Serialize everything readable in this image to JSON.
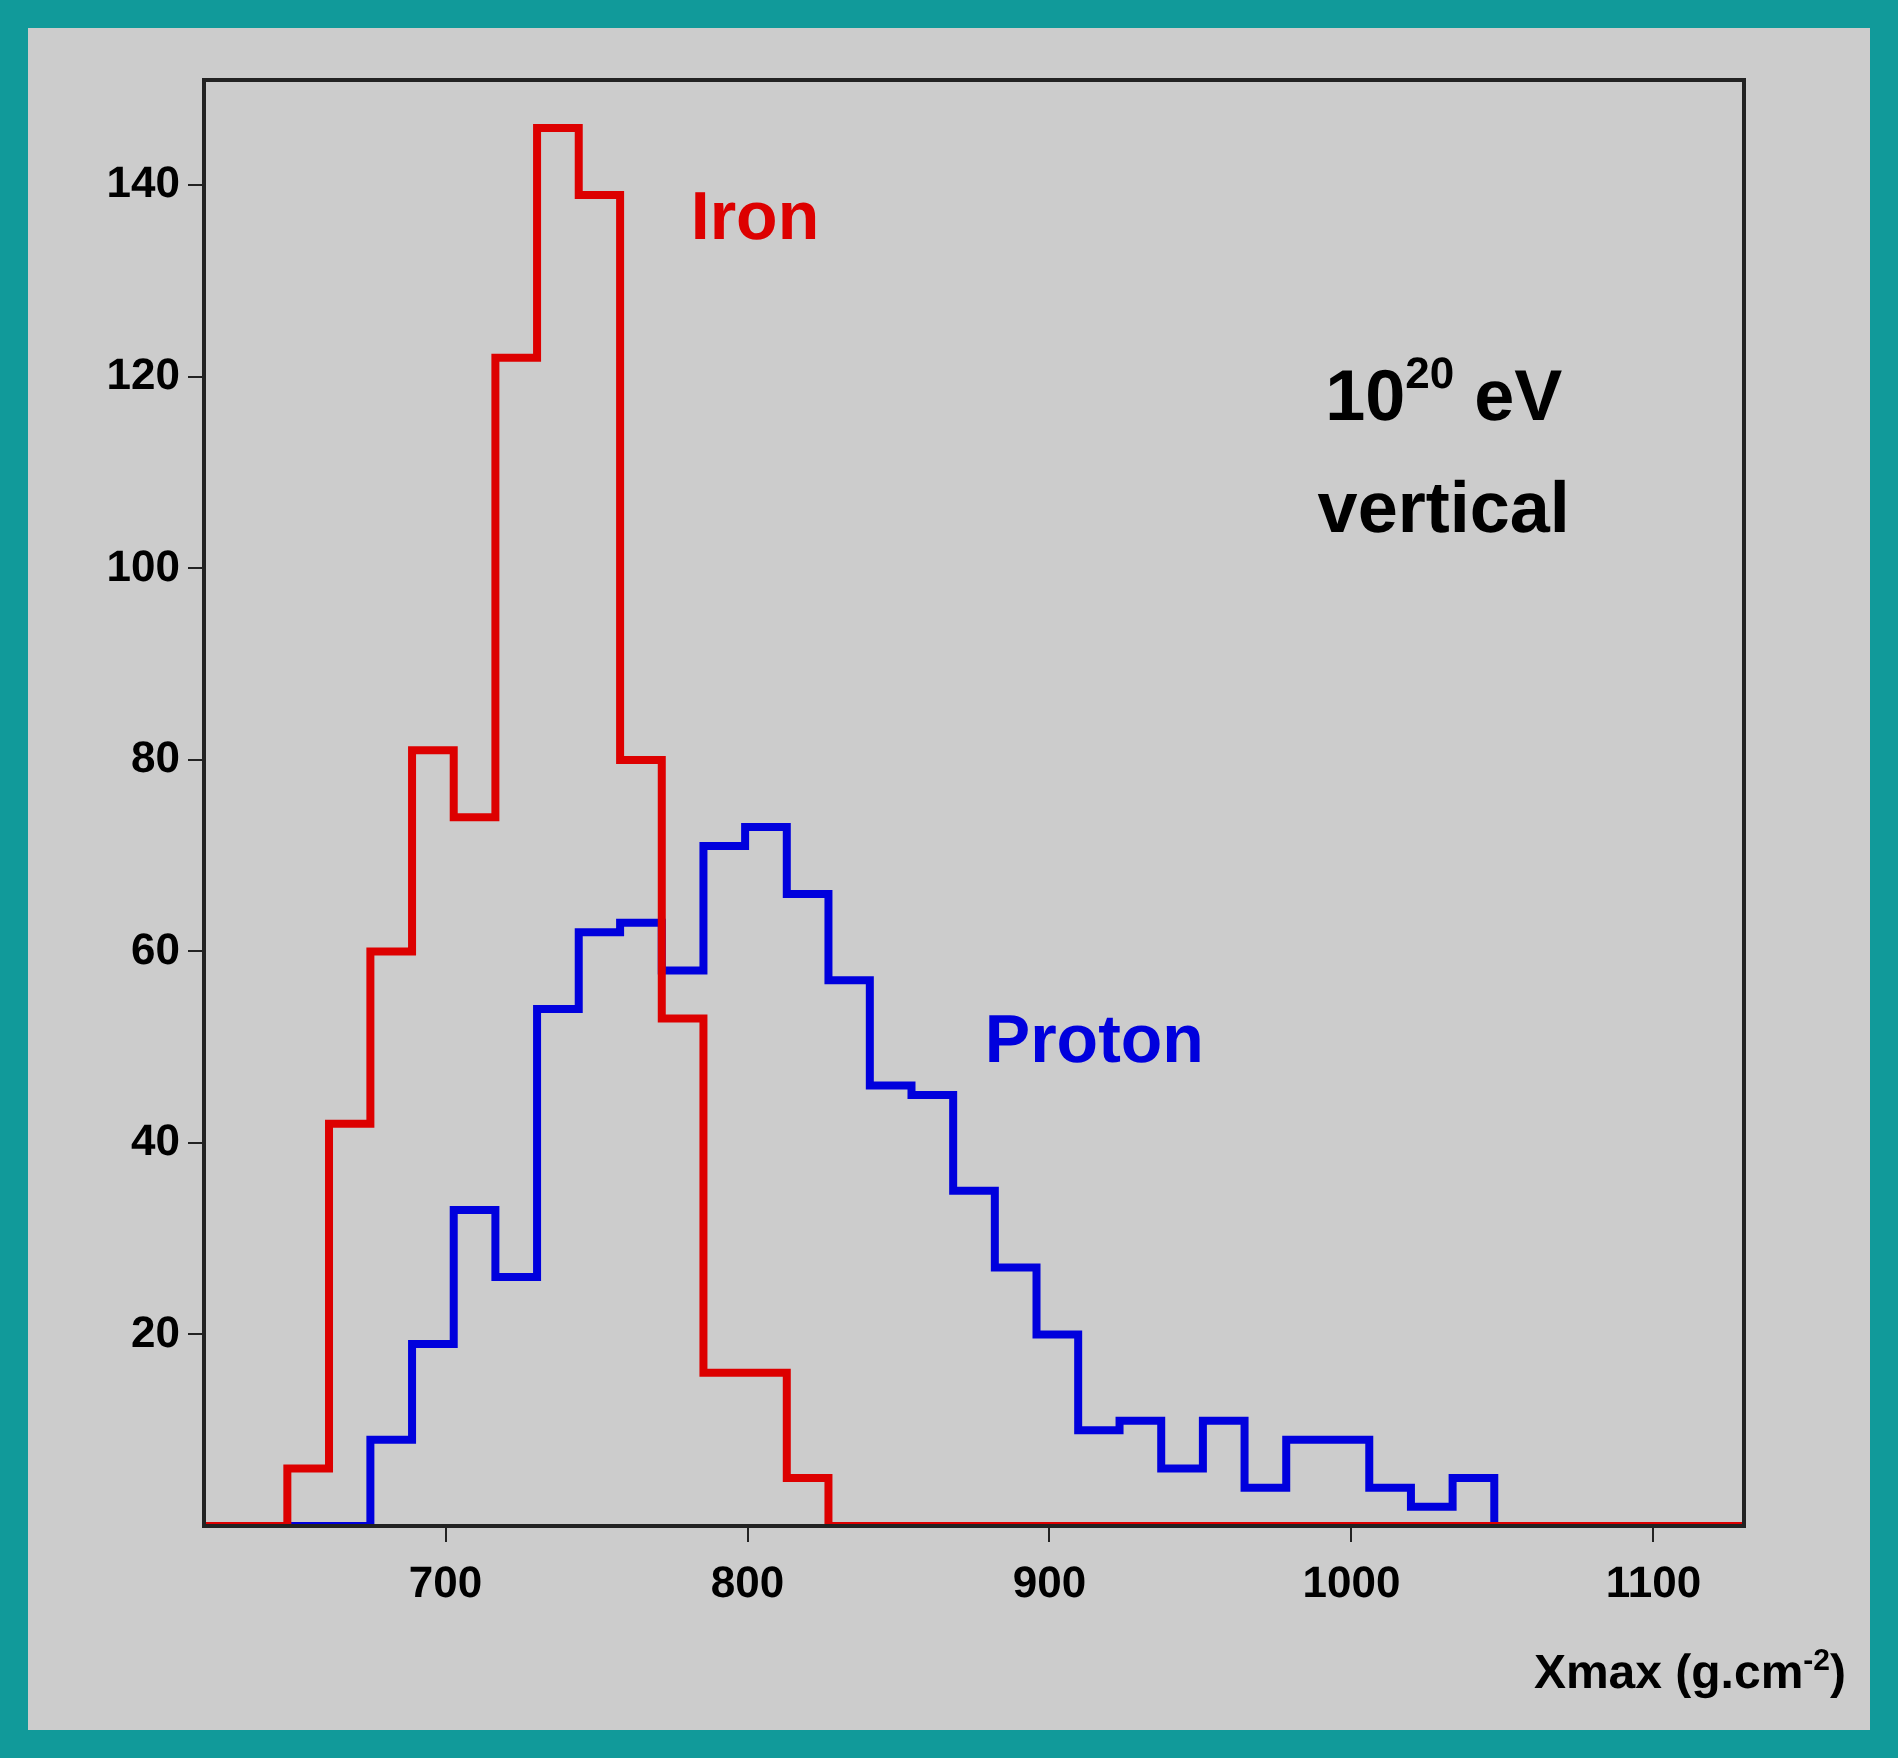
{
  "chart_data": {
    "type": "histogram",
    "xlabel": "Xmax (g.cm$^{-2}$)",
    "bins": [
      620,
      633.8,
      647.6,
      661.4,
      675.1,
      688.9,
      702.7,
      716.5,
      730.3,
      744.1,
      757.8,
      771.6,
      785.4,
      799.2,
      813.0,
      826.8,
      840.5,
      854.3,
      868.1,
      881.9,
      895.7,
      909.5,
      923.2,
      937.0,
      950.8,
      964.6,
      978.4,
      992.2,
      1005.9,
      1019.7,
      1033.5,
      1047.3,
      1061.1,
      1074.9,
      1088.6,
      1102.4,
      1116.2,
      1130
    ],
    "series": [
      {
        "name": "Iron",
        "color": "#dd0000",
        "values": [
          0,
          0,
          6,
          42,
          60,
          81,
          74,
          122,
          146,
          139,
          80,
          53,
          16,
          16,
          5,
          0,
          0,
          0,
          0,
          0,
          0,
          0,
          0,
          0,
          0,
          0,
          0,
          0,
          0,
          0,
          0,
          0,
          0,
          0,
          0,
          0,
          0
        ]
      },
      {
        "name": "Proton",
        "color": "#0000dd",
        "values": [
          0,
          0,
          0,
          0,
          9,
          19,
          33,
          26,
          54,
          62,
          63,
          58,
          71,
          73,
          66,
          57,
          46,
          45,
          35,
          27,
          20,
          10,
          11,
          6,
          11,
          4,
          9,
          9,
          4,
          2,
          5,
          0,
          0,
          0,
          0,
          0,
          0
        ]
      }
    ],
    "xlim": [
      620,
      1130
    ],
    "xticks": [
      700,
      800,
      900,
      1000,
      1100
    ],
    "ylim": [
      0,
      151
    ],
    "yticks": [
      20,
      40,
      60,
      80,
      100,
      120,
      140
    ],
    "grid": false,
    "legend": false,
    "annotations": [
      "10$^{20}$ eV\nvertical"
    ]
  }
}
